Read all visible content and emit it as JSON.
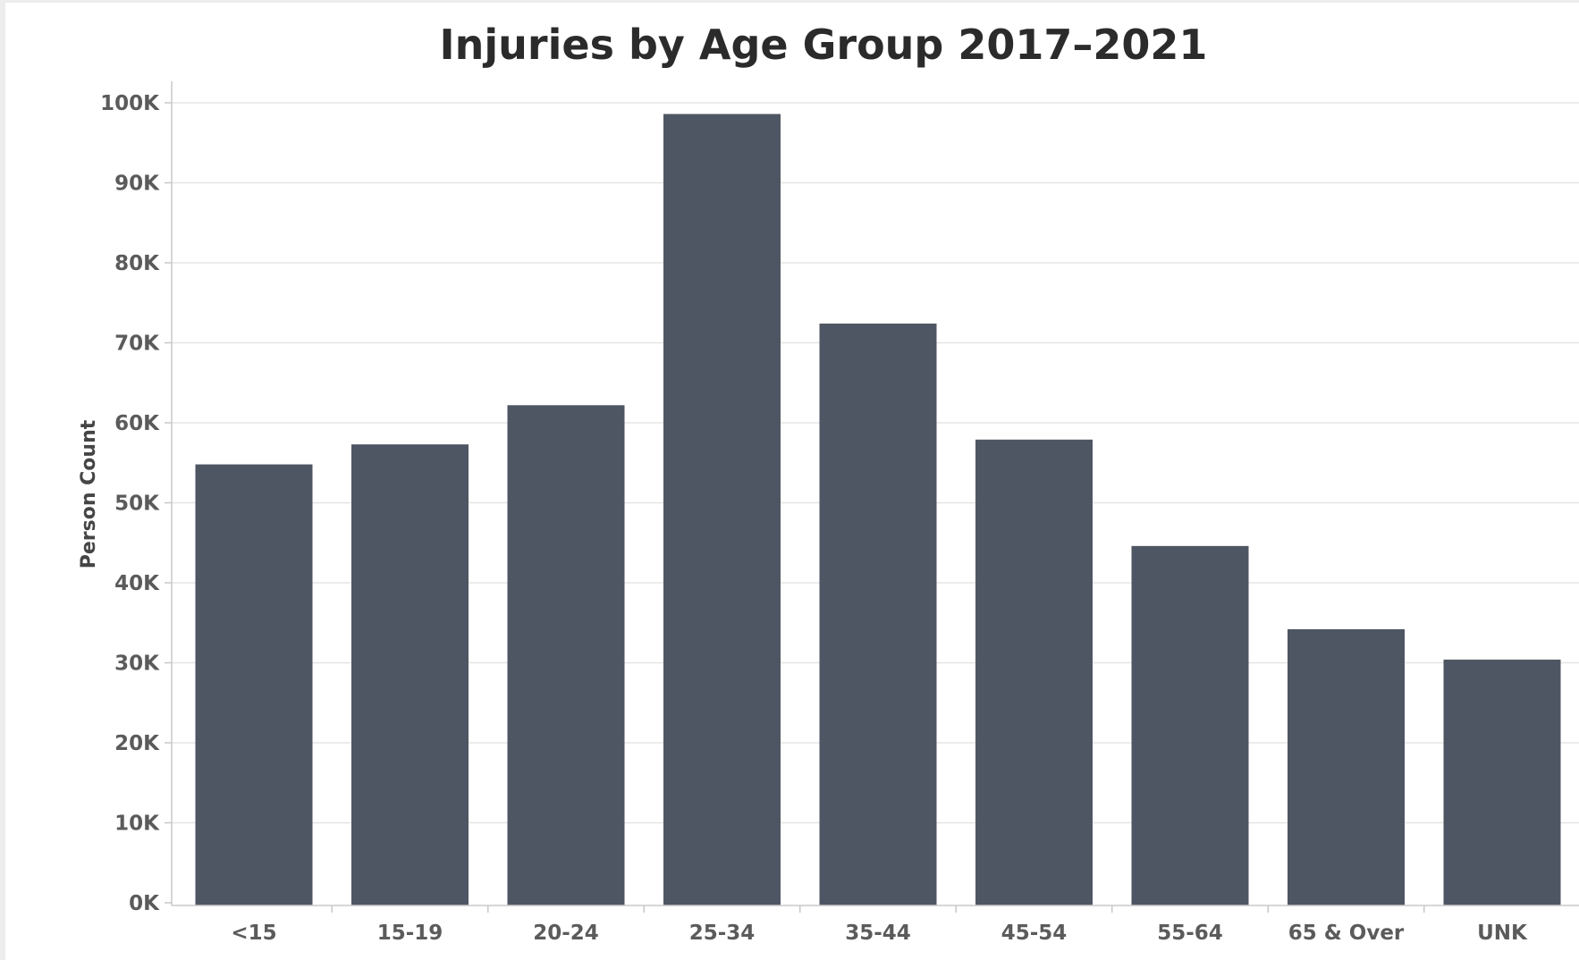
{
  "colors": {
    "bar": "#4f5663",
    "background": "#ffffff",
    "frame": "#ededed"
  },
  "chart_data": {
    "type": "bar",
    "title": "Injuries by Age Group 2017–2021",
    "xlabel": "",
    "ylabel": "Person Count",
    "categories": [
      "<15",
      "15-19",
      "20-24",
      "25-34",
      "35-44",
      "45-54",
      "55-64",
      "65 & Over",
      "UNK"
    ],
    "values": [
      54800,
      57300,
      62200,
      98600,
      72400,
      57900,
      44600,
      34200,
      30400
    ],
    "ylim": [
      0,
      100000
    ],
    "yticks": [
      0,
      10000,
      20000,
      30000,
      40000,
      50000,
      60000,
      70000,
      80000,
      90000,
      100000
    ],
    "ytick_labels": [
      "0K",
      "10K",
      "20K",
      "30K",
      "40K",
      "50K",
      "60K",
      "70K",
      "80K",
      "90K",
      "100K"
    ],
    "grid": true,
    "legend": "none"
  }
}
